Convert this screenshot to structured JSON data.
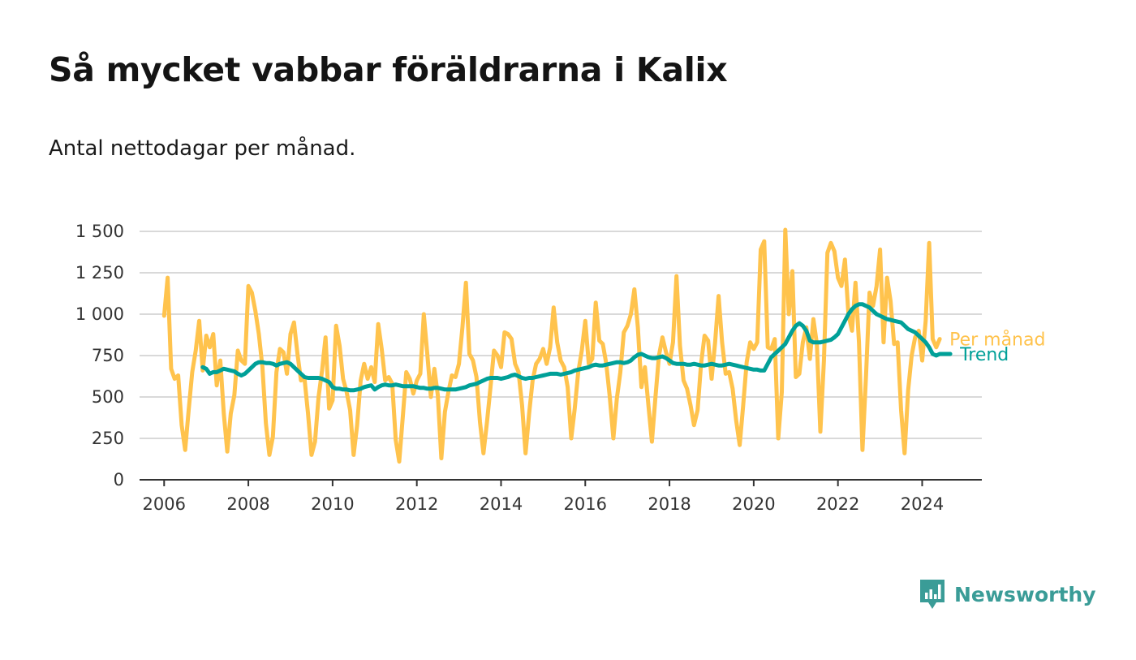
{
  "title": "Så mycket vabbar föräldrarna i Kalix",
  "subtitle": "Antal nettodagar per månad.",
  "brand": {
    "name": "Newsworthy",
    "icon": "newsworthy-logo-icon",
    "color": "#3a9c97"
  },
  "chart_data": {
    "type": "line",
    "title": "Så mycket vabbar föräldrarna i Kalix",
    "subtitle": "Antal nettodagar per månad.",
    "xlabel": "",
    "ylabel": "",
    "ylim": [
      0,
      1500
    ],
    "xlim": [
      "2005-06",
      "2025-06"
    ],
    "y_ticks": [
      0,
      250,
      500,
      750,
      1000,
      1250,
      1500
    ],
    "y_tick_labels": [
      "0",
      "250",
      "500",
      "750",
      "1 000",
      "1 250",
      "1 500"
    ],
    "x_ticks": [
      2006,
      2008,
      2010,
      2012,
      2014,
      2016,
      2018,
      2020,
      2022,
      2024
    ],
    "x_tick_labels": [
      "2006",
      "2008",
      "2010",
      "2012",
      "2014",
      "2016",
      "2018",
      "2020",
      "2022",
      "2024"
    ],
    "grid": "horizontal",
    "legend": "direct labels at line ends (right)",
    "series": [
      {
        "name": "Per månad",
        "color": "#ffc34d",
        "start": "2006-01",
        "frequency": "monthly",
        "values": [
          990,
          1220,
          670,
          610,
          630,
          330,
          180,
          420,
          650,
          780,
          960,
          660,
          870,
          800,
          880,
          570,
          720,
          400,
          170,
          400,
          510,
          780,
          720,
          700,
          1170,
          1130,
          1020,
          880,
          680,
          340,
          150,
          260,
          650,
          790,
          770,
          640,
          880,
          950,
          760,
          600,
          610,
          400,
          150,
          230,
          500,
          660,
          860,
          430,
          480,
          930,
          810,
          610,
          530,
          420,
          150,
          330,
          600,
          700,
          610,
          680,
          590,
          940,
          790,
          600,
          620,
          580,
          240,
          110,
          380,
          650,
          610,
          520,
          600,
          640,
          1000,
          760,
          500,
          670,
          510,
          130,
          410,
          530,
          630,
          620,
          700,
          920,
          1190,
          760,
          720,
          620,
          350,
          160,
          350,
          560,
          780,
          750,
          680,
          890,
          880,
          850,
          700,
          650,
          450,
          160,
          400,
          600,
          700,
          730,
          790,
          700,
          800,
          1040,
          830,
          720,
          680,
          560,
          250,
          430,
          650,
          780,
          960,
          700,
          730,
          1070,
          840,
          820,
          700,
          500,
          250,
          490,
          650,
          890,
          930,
          1000,
          1150,
          920,
          560,
          680,
          450,
          230,
          500,
          750,
          860,
          770,
          700,
          830,
          1230,
          810,
          600,
          550,
          450,
          330,
          420,
          700,
          870,
          840,
          610,
          830,
          1110,
          830,
          640,
          650,
          550,
          360,
          210,
          450,
          710,
          830,
          790,
          830,
          1390,
          1440,
          800,
          790,
          850,
          250,
          530,
          1510,
          1000,
          1260,
          620,
          640,
          830,
          920,
          730,
          970,
          820,
          290,
          720,
          1370,
          1430,
          1380,
          1220,
          1170,
          1330,
          1000,
          900,
          1190,
          830,
          180,
          630,
          1130,
          1050,
          1170,
          1390,
          830,
          1220,
          1080,
          820,
          830,
          420,
          160,
          540,
          750,
          860,
          900,
          720,
          960,
          1430,
          850,
          800,
          850
        ]
      },
      {
        "name": "Trend",
        "color": "#00a098",
        "start": "2006-12",
        "frequency": "monthly",
        "values": [
          680,
          670,
          640,
          650,
          650,
          660,
          670,
          665,
          660,
          655,
          640,
          630,
          640,
          660,
          680,
          700,
          710,
          710,
          705,
          705,
          700,
          690,
          700,
          705,
          710,
          700,
          680,
          660,
          640,
          620,
          615,
          615,
          615,
          615,
          610,
          600,
          590,
          560,
          550,
          550,
          545,
          545,
          540,
          540,
          545,
          550,
          560,
          565,
          570,
          545,
          560,
          570,
          575,
          570,
          570,
          575,
          570,
          565,
          565,
          565,
          565,
          560,
          555,
          555,
          550,
          550,
          555,
          555,
          550,
          545,
          545,
          545,
          545,
          550,
          555,
          560,
          570,
          575,
          580,
          590,
          600,
          610,
          615,
          615,
          615,
          610,
          615,
          620,
          630,
          635,
          625,
          615,
          610,
          615,
          615,
          620,
          625,
          630,
          635,
          640,
          640,
          640,
          635,
          640,
          645,
          650,
          660,
          665,
          670,
          675,
          680,
          690,
          695,
          690,
          690,
          695,
          700,
          705,
          710,
          710,
          705,
          710,
          720,
          740,
          755,
          760,
          750,
          740,
          735,
          735,
          740,
          745,
          735,
          720,
          705,
          700,
          700,
          700,
          695,
          695,
          700,
          695,
          690,
          690,
          695,
          700,
          695,
          690,
          690,
          695,
          700,
          695,
          690,
          685,
          680,
          675,
          670,
          665,
          665,
          660,
          660,
          700,
          740,
          760,
          780,
          800,
          820,
          860,
          900,
          930,
          945,
          930,
          900,
          840,
          830,
          830,
          830,
          835,
          840,
          845,
          860,
          880,
          920,
          960,
          1000,
          1030,
          1050,
          1060,
          1060,
          1050,
          1040,
          1020,
          1000,
          990,
          980,
          970,
          965,
          960,
          955,
          950,
          930,
          910,
          900,
          890,
          870,
          850,
          830,
          800,
          760,
          750,
          760,
          760,
          760,
          760
        ]
      }
    ]
  }
}
